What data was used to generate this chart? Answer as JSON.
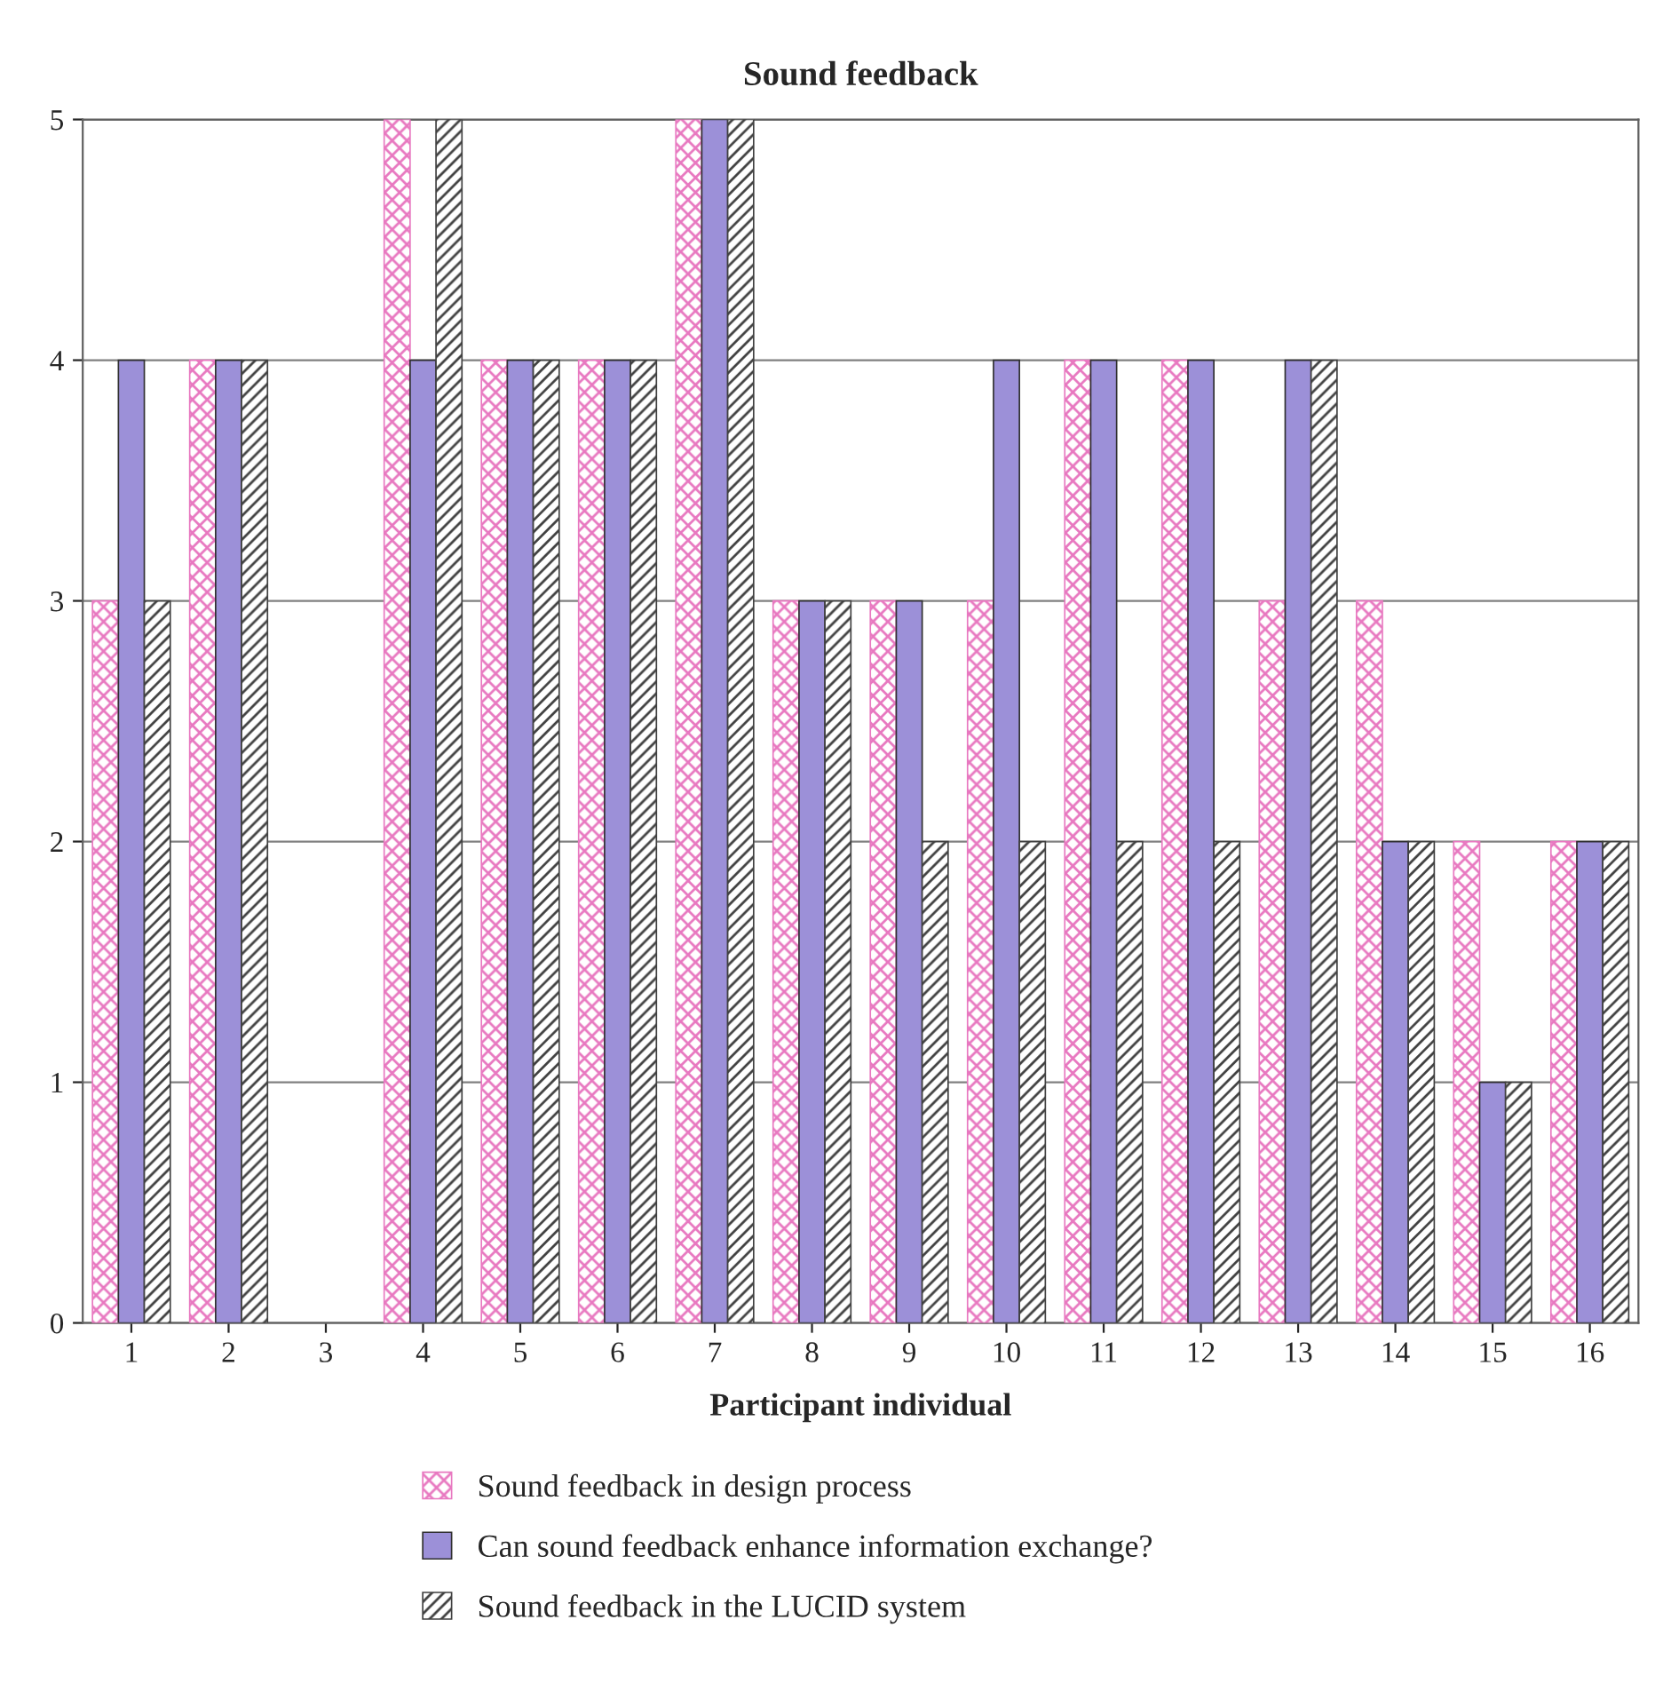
{
  "chart_data": {
    "type": "bar",
    "title": "Sound feedback",
    "xlabel": "Participant individual",
    "categories": [
      "1",
      "2",
      "3",
      "4",
      "5",
      "6",
      "7",
      "8",
      "9",
      "10",
      "11",
      "12",
      "13",
      "14",
      "15",
      "16"
    ],
    "series": [
      {
        "name": "Sound feedback in design process",
        "color": "#e878c0",
        "values": [
          3,
          4,
          null,
          5,
          4,
          4,
          5,
          3,
          3,
          3,
          4,
          4,
          3,
          3,
          2,
          2
        ]
      },
      {
        "name": "Can sound feedback enhance information exchange?",
        "color": "#9c90d8",
        "values": [
          4,
          4,
          null,
          4,
          4,
          4,
          5,
          3,
          3,
          4,
          4,
          4,
          4,
          2,
          1,
          2
        ]
      },
      {
        "name": "Sound feedback in the LUCID system",
        "color": "#404040",
        "values": [
          3,
          4,
          null,
          5,
          4,
          4,
          5,
          3,
          2,
          2,
          2,
          2,
          4,
          2,
          1,
          2
        ]
      }
    ],
    "ylim": [
      0,
      5
    ],
    "yticks": [
      0,
      1,
      2,
      3,
      4,
      5
    ],
    "grid": "y",
    "legend": "bottom"
  }
}
